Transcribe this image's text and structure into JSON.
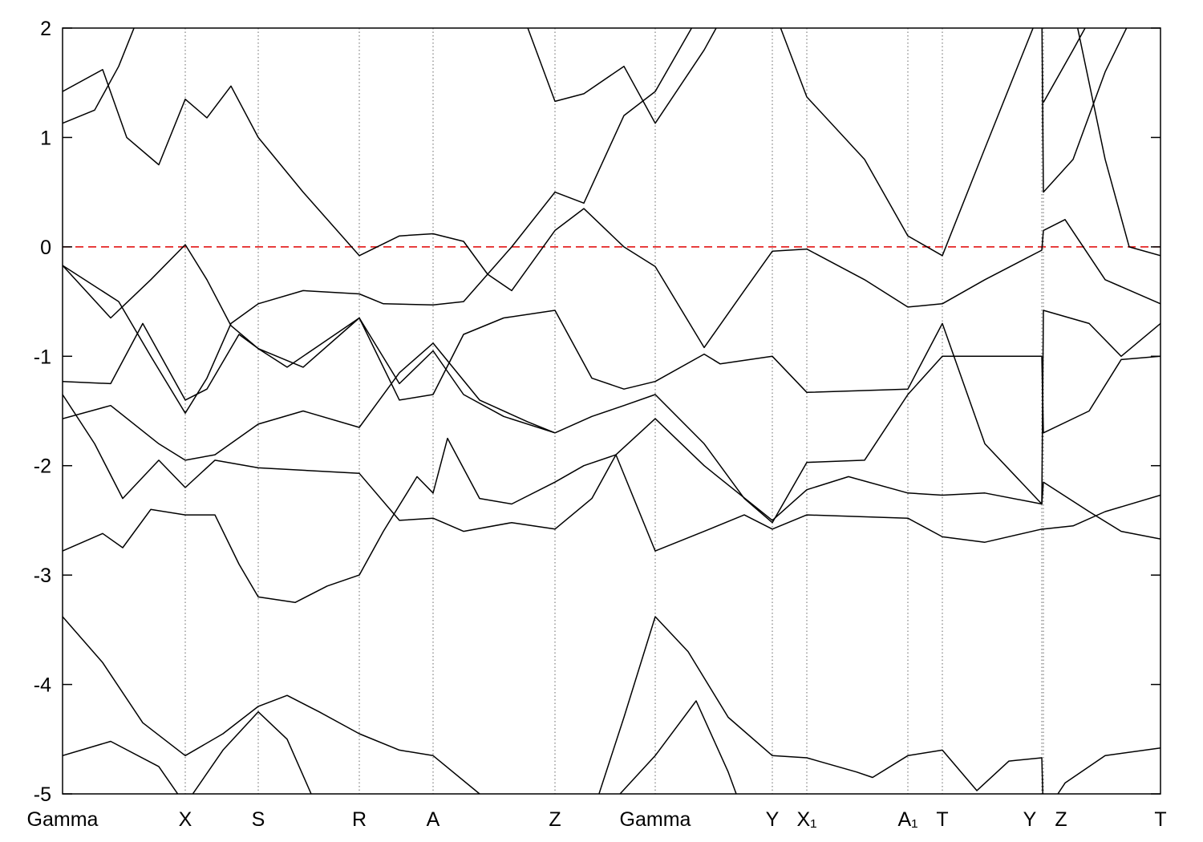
{
  "chart_data": {
    "type": "line",
    "xlim": [
      0,
      13.69
    ],
    "ylim": [
      -5,
      2
    ],
    "yticks": [
      -5,
      -4,
      -3,
      -2,
      -1,
      0,
      1,
      2
    ],
    "xticks": [
      {
        "value": 0,
        "label": "Gamma"
      },
      {
        "value": 1.53,
        "label": "X"
      },
      {
        "value": 2.44,
        "label": "S"
      },
      {
        "value": 3.7,
        "label": "R"
      },
      {
        "value": 4.62,
        "label": "A"
      },
      {
        "value": 6.14,
        "label": "Z"
      },
      {
        "value": 7.39,
        "label": "Gamma"
      },
      {
        "value": 8.85,
        "label": "Y"
      },
      {
        "value": 9.28,
        "label": "X₁"
      },
      {
        "value": 10.54,
        "label": "A₁"
      },
      {
        "value": 10.97,
        "label": "T"
      },
      {
        "value": 12.21,
        "label": "Y"
      },
      {
        "value": 12.23,
        "label": "Z"
      },
      {
        "value": 13.69,
        "label": "T"
      }
    ],
    "xgrid": true,
    "zero_line": {
      "value": 0,
      "color": "#e00000"
    },
    "series": [
      {
        "color": "#000000",
        "x": [
          0,
          0.5,
          1.0,
          1.53,
          2.0,
          2.44,
          2.8,
          3.2,
          3.7,
          4.2,
          4.62,
          5.2,
          5.5,
          6.6,
          7.0,
          7.39,
          7.8,
          8.3,
          8.85,
          9.28,
          9.9,
          10.1,
          10.54,
          10.97,
          11.4,
          11.8,
          12.21,
          12.23,
          12.5,
          13.0,
          13.69
        ],
        "values": [
          -3.38,
          -3.8,
          -4.35,
          -4.65,
          -4.45,
          -4.2,
          -4.1,
          -4.25,
          -4.45,
          -4.6,
          -4.65,
          -5.0,
          -5.2,
          -5.2,
          -4.3,
          -3.38,
          -3.7,
          -4.3,
          -4.65,
          -4.67,
          -4.8,
          -4.85,
          -4.65,
          -4.6,
          -4.97,
          -4.7,
          -4.67,
          -5.2,
          -4.9,
          -4.65,
          -4.58
        ]
      },
      {
        "color": "#000000",
        "x": [
          0,
          0.6,
          1.2,
          1.53,
          2.0,
          2.44,
          2.8,
          3.1,
          3.3,
          4.62,
          6.14,
          6.7,
          7.39,
          7.9,
          8.3,
          8.5,
          8.85
        ],
        "values": [
          -4.65,
          -4.52,
          -4.75,
          -5.1,
          -4.6,
          -4.25,
          -4.5,
          -5.0,
          -5.3,
          -5.4,
          -5.4,
          -5.2,
          -4.65,
          -4.15,
          -4.8,
          -5.2,
          -5.4
        ]
      },
      {
        "color": "#000000",
        "x": [
          0,
          0.5,
          0.75,
          1.1,
          1.53,
          1.9,
          2.2,
          2.44,
          2.9,
          3.3,
          3.7,
          4.0,
          4.42,
          4.62,
          4.8,
          5.2,
          5.6,
          6.14,
          6.5,
          6.9,
          7.39,
          8.0,
          8.5,
          8.85,
          9.28,
          10.54,
          10.97,
          11.5,
          12.21,
          12.23,
          12.6,
          13.0,
          13.69
        ],
        "values": [
          -2.78,
          -2.62,
          -2.75,
          -2.4,
          -2.45,
          -2.45,
          -2.9,
          -3.2,
          -3.25,
          -3.1,
          -3.0,
          -2.6,
          -2.1,
          -2.25,
          -1.75,
          -2.3,
          -2.35,
          -2.15,
          -2.0,
          -1.9,
          -2.78,
          -2.6,
          -2.45,
          -2.58,
          -2.45,
          -2.48,
          -2.65,
          -2.7,
          -2.58,
          -2.58,
          -2.55,
          -2.42,
          -2.27
        ]
      },
      {
        "color": "#000000",
        "x": [
          0,
          0.4,
          0.75,
          1.2,
          1.53,
          1.9,
          2.44,
          3.7,
          4.2,
          4.62,
          5.0,
          5.6,
          6.14,
          6.6,
          6.9,
          7.39,
          8.0,
          8.85,
          9.28,
          9.8,
          10.54,
          10.97,
          11.5,
          12.21,
          12.23,
          12.8,
          13.2,
          13.69
        ],
        "values": [
          -1.35,
          -1.8,
          -2.3,
          -1.95,
          -2.2,
          -1.95,
          -2.02,
          -2.07,
          -2.5,
          -2.48,
          -2.6,
          -2.52,
          -2.58,
          -2.3,
          -1.9,
          -1.57,
          -2.0,
          -2.5,
          -2.22,
          -2.1,
          -2.25,
          -2.27,
          -2.25,
          -2.35,
          -2.15,
          -2.42,
          -2.6,
          -2.67
        ]
      },
      {
        "color": "#000000",
        "x": [
          0,
          0.6,
          1.2,
          1.53,
          1.9,
          2.44,
          3.0,
          3.7,
          4.2,
          4.62,
          5.2,
          5.8,
          6.14,
          6.6,
          7.0,
          7.39,
          8.0,
          8.5,
          8.85,
          9.28,
          10.0,
          10.54,
          10.97,
          12.21,
          12.23,
          12.8,
          13.2,
          13.69
        ],
        "values": [
          -1.57,
          -1.45,
          -1.8,
          -1.95,
          -1.9,
          -1.62,
          -1.5,
          -1.65,
          -1.15,
          -0.88,
          -1.4,
          -1.6,
          -1.7,
          -1.55,
          -1.45,
          -1.35,
          -1.8,
          -2.3,
          -2.52,
          -1.97,
          -1.95,
          -1.35,
          -1.0,
          -1.0,
          -1.7,
          -1.5,
          -1.03,
          -1.0
        ]
      },
      {
        "color": "#000000",
        "x": [
          0,
          0.6,
          1.0,
          1.53,
          1.8,
          2.2,
          2.44,
          3.0,
          3.7,
          4.2,
          4.62,
          5.0,
          5.5,
          6.14,
          6.6,
          7.0,
          7.39,
          8.0,
          8.2,
          8.85,
          9.28,
          10.54,
          10.97,
          11.5,
          12.21,
          12.23,
          12.8,
          13.2,
          13.69
        ],
        "values": [
          -1.23,
          -1.25,
          -0.7,
          -1.4,
          -1.3,
          -0.8,
          -0.93,
          -1.1,
          -0.65,
          -1.4,
          -1.35,
          -0.8,
          -0.65,
          -0.58,
          -1.2,
          -1.3,
          -1.23,
          -0.98,
          -1.07,
          -1.0,
          -1.33,
          -1.3,
          -0.7,
          -1.8,
          -2.35,
          -0.58,
          -0.7,
          -1.0,
          -0.7
        ]
      },
      {
        "color": "#000000",
        "x": [
          0,
          0.7,
          1.1,
          1.53,
          1.8,
          2.1,
          2.44,
          3.0,
          3.7,
          4.0,
          4.62,
          5.0,
          5.3,
          5.6,
          6.14,
          6.5,
          7.0,
          7.39,
          8.0,
          8.5,
          8.85,
          9.28,
          10.0,
          10.54,
          10.97,
          11.5,
          12.21,
          12.23,
          12.5,
          13.0,
          13.69
        ],
        "values": [
          -0.17,
          -0.5,
          -1.0,
          -1.52,
          -1.2,
          -0.7,
          -0.52,
          -0.4,
          -0.43,
          -0.52,
          -0.53,
          -0.5,
          -0.25,
          -0.4,
          0.15,
          0.35,
          0.0,
          -0.18,
          -0.92,
          -0.4,
          -0.04,
          -0.02,
          -0.3,
          -0.55,
          -0.52,
          -0.3,
          -0.03,
          0.15,
          0.25,
          -0.3,
          -0.52
        ]
      },
      {
        "color": "#000000",
        "x": [
          0,
          0.6,
          1.1,
          1.53,
          1.8,
          2.1,
          2.44,
          2.8,
          3.2,
          3.7,
          4.2,
          4.62,
          5.0,
          5.5,
          6.14
        ],
        "values": [
          -0.17,
          -0.65,
          -0.3,
          0.02,
          -0.3,
          -0.72,
          -0.93,
          -1.1,
          -0.9,
          -0.65,
          -1.25,
          -0.95,
          -1.35,
          -1.55,
          -1.7
        ]
      },
      {
        "color": "#000000",
        "x": [
          0,
          0.5,
          0.8,
          1.2,
          1.53,
          1.8,
          2.1,
          2.44,
          3.0,
          3.7,
          4.2,
          4.62,
          5.0,
          5.3,
          5.6,
          6.14,
          6.5,
          7.0,
          7.39,
          8.0,
          8.85,
          9.28,
          10.0,
          10.54,
          10.97,
          11.5,
          12.21,
          12.23,
          12.6,
          13.0,
          13.4
        ],
        "values": [
          1.42,
          1.62,
          1.0,
          0.75,
          1.35,
          1.18,
          1.47,
          1.0,
          0.5,
          -0.08,
          0.1,
          0.12,
          0.05,
          -0.25,
          0.0,
          0.5,
          0.4,
          1.2,
          1.42,
          2.2,
          2.2,
          1.37,
          0.8,
          0.1,
          -0.08,
          0.9,
          2.2,
          0.5,
          0.8,
          1.6,
          2.2
        ]
      },
      {
        "color": "#000000",
        "x": [
          0,
          0.4,
          0.7,
          1.0,
          3.0,
          5.7,
          6.14,
          6.5,
          7.0,
          7.39,
          8.0,
          8.3,
          10.0,
          12.23,
          12.6,
          12.9
        ],
        "values": [
          1.13,
          1.25,
          1.65,
          2.2,
          null,
          2.2,
          1.33,
          1.4,
          1.65,
          1.13,
          1.8,
          2.2,
          null,
          1.32,
          1.8,
          2.2
        ]
      },
      {
        "color": "#000000",
        "x": [
          12.6,
          13.0,
          13.3,
          13.69
        ],
        "values": [
          2.2,
          0.8,
          0.0,
          -0.08
        ]
      }
    ]
  }
}
